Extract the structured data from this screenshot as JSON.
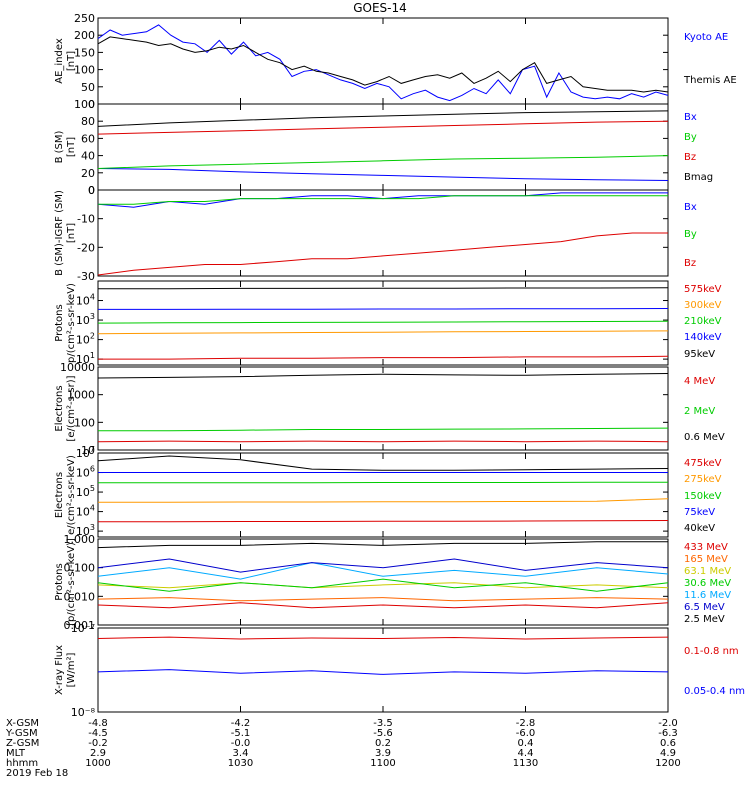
{
  "title": "GOES-14",
  "date_label": "2019 Feb 18",
  "footer": {
    "row_labels": [
      "X-GSM",
      "Y-GSM",
      "Z-GSM",
      "MLT",
      "hhmm"
    ],
    "columns": [
      [
        "-4.8",
        "-4.5",
        "-0.2",
        "2.9",
        "1000"
      ],
      [
        "-4.2",
        "-5.1",
        "-0.0",
        "3.4",
        "1030"
      ],
      [
        "-3.5",
        "-5.6",
        "0.2",
        "3.9",
        "1100"
      ],
      [
        "-2.8",
        "-6.0",
        "0.4",
        "4.4",
        "1130"
      ],
      [
        "-2.0",
        "-6.3",
        "0.6",
        "4.9",
        "1200"
      ]
    ]
  },
  "chart_data": [
    {
      "type": "line",
      "ylabel": [
        "AE_index",
        "[nT]"
      ],
      "ylim": [
        0,
        250
      ],
      "yscale": "linear",
      "yticks": [
        0,
        50,
        100,
        150,
        200,
        250
      ],
      "series": [
        {
          "name": "Kyoto AE",
          "color": "#0000ff",
          "values": [
            190,
            215,
            200,
            205,
            210,
            230,
            200,
            180,
            175,
            150,
            185,
            145,
            180,
            140,
            150,
            130,
            80,
            95,
            100,
            85,
            70,
            60,
            45,
            60,
            50,
            15,
            30,
            40,
            20,
            10,
            25,
            45,
            30,
            70,
            30,
            100,
            110,
            20,
            90,
            35,
            20,
            15,
            20,
            15,
            30,
            20,
            35,
            25
          ]
        },
        {
          "name": "Themis AE",
          "color": "#000000",
          "values": [
            175,
            195,
            190,
            185,
            180,
            170,
            175,
            160,
            150,
            155,
            165,
            160,
            170,
            150,
            130,
            120,
            100,
            110,
            95,
            90,
            80,
            70,
            55,
            65,
            80,
            60,
            70,
            80,
            85,
            75,
            90,
            60,
            75,
            95,
            65,
            100,
            120,
            60,
            70,
            80,
            50,
            45,
            40,
            40,
            40,
            35,
            40,
            35
          ]
        }
      ]
    },
    {
      "type": "line",
      "ylabel": [
        "B (SM)",
        "[nT]"
      ],
      "ylim": [
        0,
        100
      ],
      "yscale": "linear",
      "yticks": [
        0,
        20,
        40,
        60,
        80,
        100
      ],
      "series": [
        {
          "name": "Bx",
          "color": "#0000ff",
          "values": [
            25,
            24,
            21,
            19,
            17,
            15,
            13,
            12,
            11
          ]
        },
        {
          "name": "By",
          "color": "#00cc00",
          "values": [
            25,
            28,
            30,
            32,
            34,
            36,
            37,
            38,
            40
          ]
        },
        {
          "name": "Bz",
          "color": "#dd0000",
          "values": [
            65,
            67,
            69,
            71,
            73,
            75,
            77,
            79,
            80
          ]
        },
        {
          "name": "Bmag",
          "color": "#000000",
          "values": [
            74,
            78,
            81,
            84,
            86,
            88,
            90,
            91,
            92
          ]
        }
      ]
    },
    {
      "type": "line",
      "ylabel": [
        "B (SM)-IGRF (SM)",
        "[nT]"
      ],
      "ylim": [
        -30,
        0
      ],
      "yscale": "linear",
      "yticks": [
        -30,
        -20,
        -10,
        0
      ],
      "series": [
        {
          "name": "Bx",
          "color": "#0000ff",
          "values": [
            -5,
            -6,
            -4,
            -5,
            -3,
            -3,
            -2,
            -2,
            -3,
            -2,
            -2,
            -2,
            -2,
            -1,
            -1,
            -1,
            -1
          ]
        },
        {
          "name": "By",
          "color": "#00cc00",
          "values": [
            -5,
            -5,
            -4,
            -4,
            -3,
            -3,
            -3,
            -3,
            -3,
            -3,
            -2,
            -2,
            -2,
            -2,
            -2,
            -2,
            -2
          ]
        },
        {
          "name": "Bz",
          "color": "#dd0000",
          "values": [
            -30,
            -28,
            -27,
            -26,
            -26,
            -25,
            -24,
            -24,
            -23,
            -22,
            -21,
            -20,
            -19,
            -18,
            -16,
            -15,
            -15
          ]
        }
      ]
    },
    {
      "type": "line",
      "ylabel": [
        "Protons",
        "p/(cm²-s-sr-keV)"
      ],
      "ylim": [
        5,
        100000
      ],
      "yscale": "log",
      "yticks": [
        10,
        100,
        1000,
        10000
      ],
      "series": [
        {
          "name": "575keV",
          "color": "#dd0000",
          "values": [
            10,
            10,
            11,
            11,
            12,
            12,
            13,
            13,
            14
          ]
        },
        {
          "name": "300keV",
          "color": "#ff9900",
          "values": [
            200,
            210,
            220,
            230,
            240,
            250,
            260,
            270,
            280
          ]
        },
        {
          "name": "210keV",
          "color": "#00cc00",
          "values": [
            700,
            720,
            740,
            760,
            780,
            800,
            820,
            840,
            860
          ]
        },
        {
          "name": "140keV",
          "color": "#0000ff",
          "values": [
            3500,
            3500,
            3600,
            3600,
            3700,
            3700,
            3800,
            3800,
            3900
          ]
        },
        {
          "name": "95keV",
          "color": "#000000",
          "values": [
            40000,
            40000,
            42000,
            42000,
            43000,
            43000,
            44000,
            44000,
            45000
          ]
        }
      ]
    },
    {
      "type": "line",
      "ylabel": [
        "Electrons",
        "[e/(cm²-s-sr)]"
      ],
      "ylim": [
        10,
        10000
      ],
      "yscale": "log",
      "yticks": [
        10,
        100,
        1000,
        10000
      ],
      "ytick_labels": [
        "10",
        "100",
        "1000",
        "10000"
      ],
      "series": [
        {
          "name": "4 MeV",
          "color": "#dd0000",
          "values": [
            20,
            21,
            20,
            21,
            20,
            21,
            20,
            21,
            20
          ]
        },
        {
          "name": "2 MeV",
          "color": "#00cc00",
          "values": [
            50,
            50,
            52,
            55,
            55,
            57,
            58,
            60,
            62
          ]
        },
        {
          "name": "0.6 MeV",
          "color": "#000000",
          "values": [
            4000,
            4200,
            4500,
            5000,
            5500,
            5200,
            5000,
            5500,
            5800
          ]
        }
      ]
    },
    {
      "type": "line",
      "ylabel": [
        "Electrons",
        "e/(cm²-s-sr-keV)"
      ],
      "ylim": [
        500,
        10000000
      ],
      "yscale": "log",
      "yticks": [
        1000,
        10000,
        100000,
        1000000,
        10000000
      ],
      "series": [
        {
          "name": "475keV",
          "color": "#dd0000",
          "values": [
            3000,
            3000,
            3100,
            3100,
            3200,
            3200,
            3300,
            3400,
            3500
          ]
        },
        {
          "name": "275keV",
          "color": "#ff9900",
          "values": [
            30000,
            30000,
            31000,
            31000,
            32000,
            32000,
            33000,
            34000,
            45000
          ]
        },
        {
          "name": "150keV",
          "color": "#00cc00",
          "values": [
            300000,
            300000,
            300000,
            300000,
            310000,
            310000,
            310000,
            320000,
            320000
          ]
        },
        {
          "name": "75keV",
          "color": "#0000ff",
          "values": [
            1000000,
            1000000,
            1000000,
            1000000,
            1000000,
            1000000,
            1000000,
            1000000,
            1000000
          ]
        },
        {
          "name": "40keV",
          "color": "#000000",
          "values": [
            4000000,
            7000000,
            4500000,
            1500000,
            1300000,
            1300000,
            1400000,
            1500000,
            1600000
          ]
        }
      ]
    },
    {
      "type": "line",
      "ylabel": [
        "Protons",
        "[p/(cm²-s-sr-keV)]"
      ],
      "ylim": [
        0.001,
        1
      ],
      "yscale": "log",
      "yticks": [
        0.001,
        0.01,
        0.1,
        1.0
      ],
      "ytick_labels": [
        "0.001",
        "0.010",
        "0.100",
        "1.000"
      ],
      "series": [
        {
          "name": "433 MeV",
          "color": "#dd0000",
          "values": [
            0.005,
            0.004,
            0.006,
            0.004,
            0.005,
            0.004,
            0.005,
            0.004,
            0.006
          ]
        },
        {
          "name": "165 MeV",
          "color": "#ff6600",
          "values": [
            0.008,
            0.009,
            0.007,
            0.008,
            0.009,
            0.007,
            0.008,
            0.009,
            0.008
          ]
        },
        {
          "name": "63.1 MeV",
          "color": "#cccc00",
          "values": [
            0.025,
            0.02,
            0.03,
            0.02,
            0.025,
            0.03,
            0.02,
            0.025,
            0.02
          ]
        },
        {
          "name": "30.6 MeV",
          "color": "#00cc00",
          "values": [
            0.03,
            0.015,
            0.03,
            0.02,
            0.04,
            0.02,
            0.03,
            0.015,
            0.03
          ]
        },
        {
          "name": "11.6 MeV",
          "color": "#00aaff",
          "values": [
            0.05,
            0.1,
            0.04,
            0.15,
            0.05,
            0.08,
            0.05,
            0.1,
            0.06
          ]
        },
        {
          "name": "6.5 MeV",
          "color": "#0000cc",
          "values": [
            0.1,
            0.2,
            0.07,
            0.15,
            0.1,
            0.2,
            0.08,
            0.15,
            0.1
          ]
        },
        {
          "name": "2.5 MeV",
          "color": "#000000",
          "values": [
            0.5,
            0.6,
            0.6,
            0.7,
            0.6,
            0.7,
            0.7,
            0.8,
            0.8
          ]
        }
      ]
    },
    {
      "type": "line",
      "ylabel": [
        "X-ray Flux",
        "[W/m²]"
      ],
      "ylim": [
        1e-08,
        1e-07
      ],
      "yscale": "log",
      "yticks": [
        1e-08,
        1e-07
      ],
      "ytick_labels": [
        "10⁻⁸",
        "10⁻⁷"
      ],
      "series": [
        {
          "name": "0.1-0.8 nm",
          "color": "#dd0000",
          "values": [
            7.5e-08,
            7.8e-08,
            7.4e-08,
            7.6e-08,
            7.5e-08,
            7.7e-08,
            7.4e-08,
            7.6e-08,
            7.8e-08
          ]
        },
        {
          "name": "0.05-0.4 nm",
          "color": "#0000ff",
          "values": [
            3e-08,
            3.2e-08,
            2.9e-08,
            3.1e-08,
            2.8e-08,
            3e-08,
            2.9e-08,
            3.1e-08,
            3e-08
          ]
        }
      ]
    }
  ]
}
